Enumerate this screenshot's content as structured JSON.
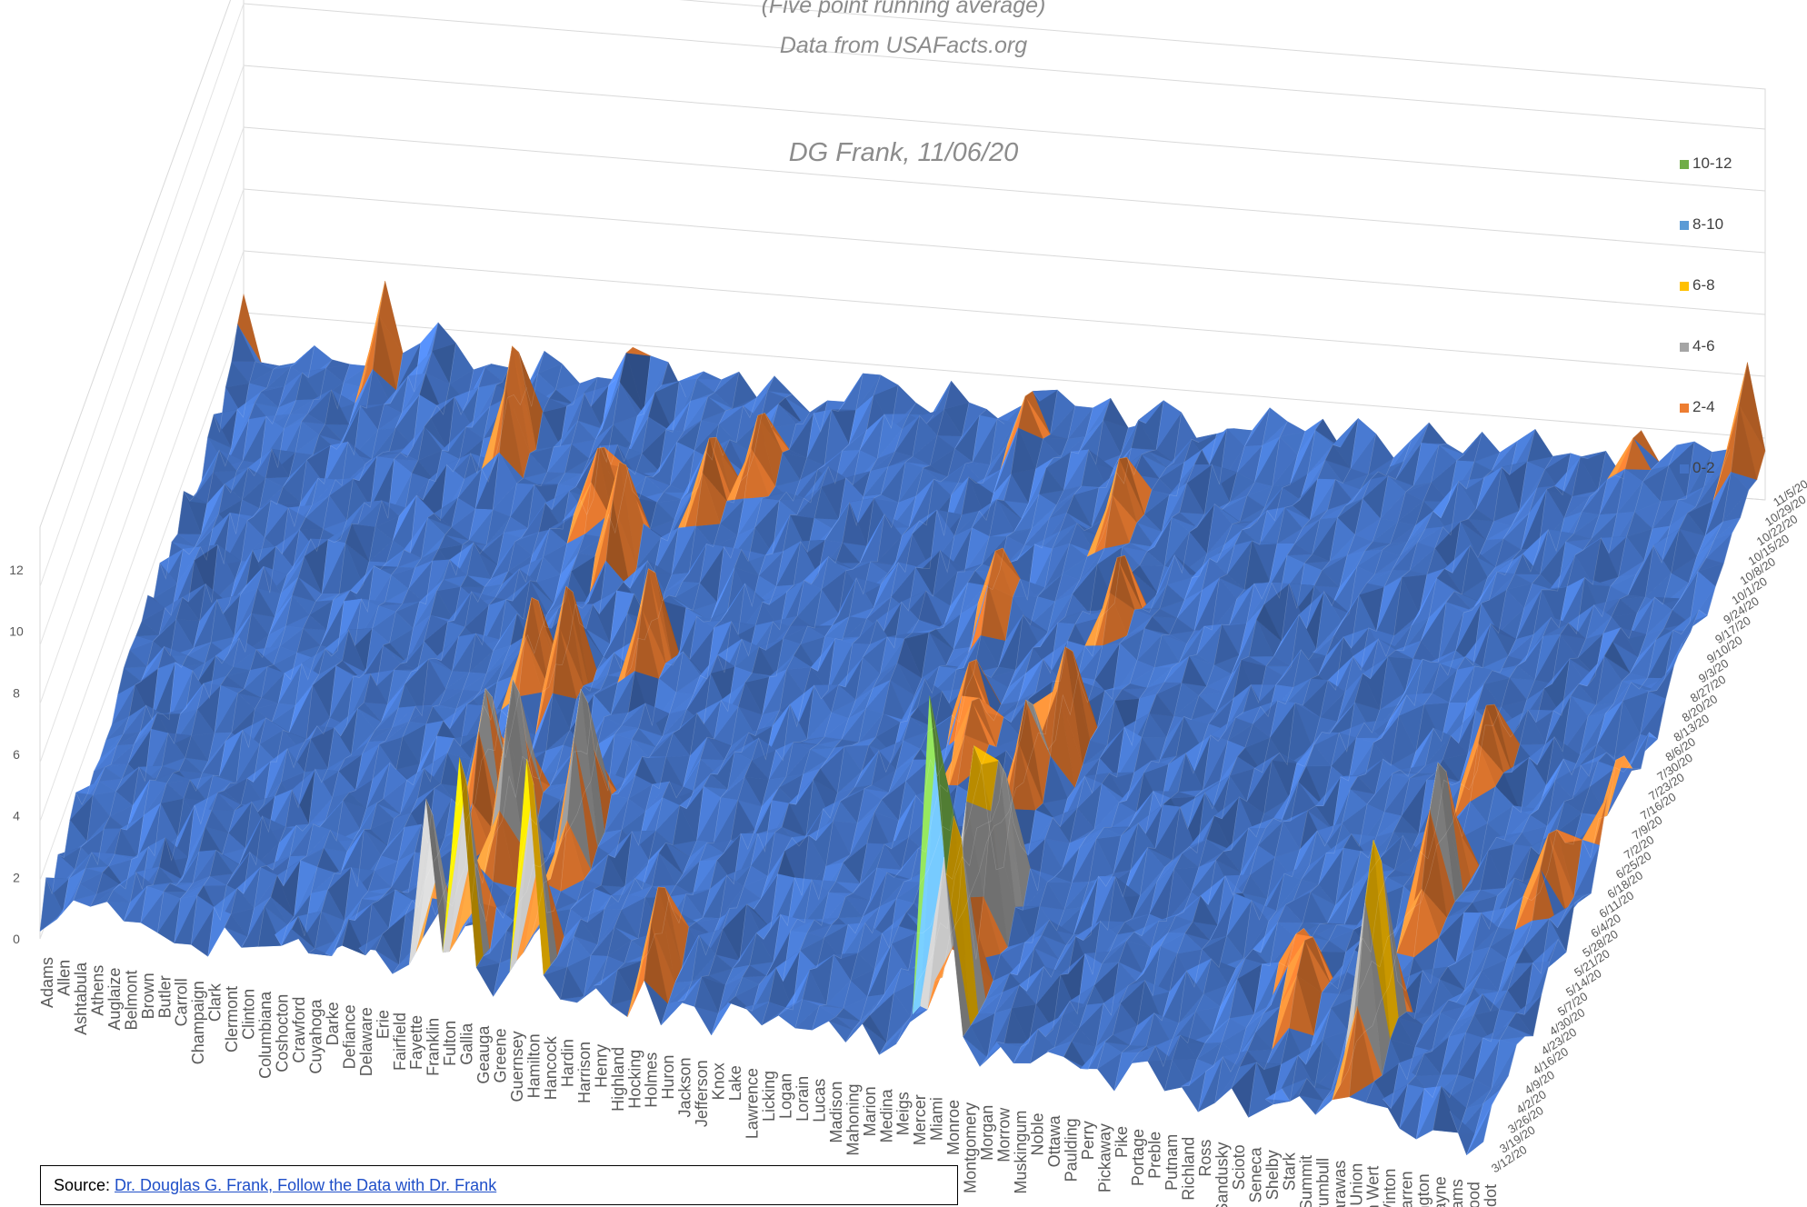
{
  "title_lines": [
    "(Five point running average)",
    "Data from USAFacts.org"
  ],
  "author_note": "DG Frank, 11/06/20",
  "source": {
    "prefix": "Source:  ",
    "link_text": "Dr. Douglas G. Frank, Follow the Data with Dr. Frank"
  },
  "chart_data": {
    "type": "surface",
    "zlim": [
      0,
      12
    ],
    "z_ticks": [
      "0",
      "2",
      "4",
      "6",
      "8",
      "10",
      "12"
    ],
    "counties": [
      "Adams",
      "Allen",
      "Ashtabula",
      "Athens",
      "Auglaize",
      "Belmont",
      "Brown",
      "Butler",
      "Carroll",
      "Champaign",
      "Clark",
      "Clermont",
      "Clinton",
      "Columbiana",
      "Coshocton",
      "Crawford",
      "Cuyahoga",
      "Darke",
      "Defiance",
      "Delaware",
      "Erie",
      "Fairfield",
      "Fayette",
      "Franklin",
      "Fulton",
      "Gallia",
      "Geauga",
      "Greene",
      "Guernsey",
      "Hamilton",
      "Hancock",
      "Hardin",
      "Harrison",
      "Henry",
      "Highland",
      "Hocking",
      "Holmes",
      "Huron",
      "Jackson",
      "Jefferson",
      "Knox",
      "Lake",
      "Lawrence",
      "Licking",
      "Logan",
      "Lorain",
      "Lucas",
      "Madison",
      "Mahoning",
      "Marion",
      "Medina",
      "Meigs",
      "Mercer",
      "Miami",
      "Monroe",
      "Montgomery",
      "Morgan",
      "Morrow",
      "Muskingum",
      "Noble",
      "Ottawa",
      "Paulding",
      "Perry",
      "Pickaway",
      "Pike",
      "Portage",
      "Preble",
      "Putnam",
      "Richland",
      "Ross",
      "Sandusky",
      "Scioto",
      "Seneca",
      "Shelby",
      "Stark",
      "Summit",
      "Trumbull",
      "Tuscarawas",
      "Union",
      "Van Wert",
      "Vinton",
      "Warren",
      "Washington",
      "Wayne",
      "Williams",
      "Wood",
      "Wyandot"
    ],
    "dates": [
      "3/12/20",
      "3/19/20",
      "3/26/20",
      "4/2/20",
      "4/9/20",
      "4/16/20",
      "4/23/20",
      "4/30/20",
      "5/7/20",
      "5/14/20",
      "5/21/20",
      "5/28/20",
      "6/4/20",
      "6/11/20",
      "6/18/20",
      "6/25/20",
      "7/2/20",
      "7/9/20",
      "7/16/20",
      "7/23/20",
      "7/30/20",
      "8/6/20",
      "8/13/20",
      "8/20/20",
      "8/27/20",
      "9/3/20",
      "9/10/20",
      "9/17/20",
      "9/24/20",
      "10/1/20",
      "10/8/20",
      "10/15/20",
      "10/22/20",
      "10/29/20",
      "11/5/20"
    ],
    "legend": [
      {
        "label": "10-12",
        "color": "#70ad47"
      },
      {
        "label": "8-10",
        "color": "#5b9bd5"
      },
      {
        "label": "6-8",
        "color": "#ffc000"
      },
      {
        "label": "4-6",
        "color": "#a5a5a5"
      },
      {
        "label": "2-4",
        "color": "#ed7d31"
      },
      {
        "label": "0-2",
        "color": "#4472c4"
      }
    ],
    "peaks": [
      {
        "county": "Adams",
        "date": "11/5/20",
        "value": 2.6
      },
      {
        "county": "Carroll",
        "date": "11/5/20",
        "value": 3.4
      },
      {
        "county": "Clermont",
        "date": "11/5/20",
        "value": 2.2
      },
      {
        "county": "Darke",
        "date": "10/1/20",
        "value": 4.5
      },
      {
        "county": "Fayette",
        "date": "10/29/20",
        "value": 2.3
      },
      {
        "county": "Franklin",
        "date": "3/12/20",
        "value": 6.5
      },
      {
        "county": "Franklin",
        "date": "5/14/20",
        "value": 5.0
      },
      {
        "county": "Franklin",
        "date": "7/2/20",
        "value": 4.0
      },
      {
        "county": "Franklin",
        "date": "9/10/20",
        "value": 3.2
      },
      {
        "county": "Gallia",
        "date": "3/12/20",
        "value": 8.0
      },
      {
        "county": "Gallia",
        "date": "5/7/20",
        "value": 6.0
      },
      {
        "county": "Gallia",
        "date": "7/2/20",
        "value": 4.5
      },
      {
        "county": "Gallia",
        "date": "8/27/20",
        "value": 4.0
      },
      {
        "county": "Hamilton",
        "date": "3/12/20",
        "value": 8.3
      },
      {
        "county": "Hamilton",
        "date": "5/7/20",
        "value": 6.0
      },
      {
        "county": "Hamilton",
        "date": "7/16/20",
        "value": 4.2
      },
      {
        "county": "Hamilton",
        "date": "9/17/20",
        "value": 3.3
      },
      {
        "county": "Hardin",
        "date": "10/1/20",
        "value": 3.0
      },
      {
        "county": "Holmes",
        "date": "3/26/20",
        "value": 3.6
      },
      {
        "county": "Lorain",
        "date": "10/22/20",
        "value": 2.6
      },
      {
        "county": "Madison",
        "date": "8/20/20",
        "value": 3.0
      },
      {
        "county": "Mahoning",
        "date": "7/9/20",
        "value": 3.0
      },
      {
        "county": "Marion",
        "date": "6/25/20",
        "value": 3.0
      },
      {
        "county": "Miami",
        "date": "3/12/20",
        "value": 12.4
      },
      {
        "county": "Miami",
        "date": "4/23/20",
        "value": 7.2
      },
      {
        "county": "Miami",
        "date": "6/11/20",
        "value": 4.5
      },
      {
        "county": "Mercer",
        "date": "9/24/20",
        "value": 3.3
      },
      {
        "county": "Monroe",
        "date": "3/19/20",
        "value": 8.0
      },
      {
        "county": "Monroe",
        "date": "4/30/20",
        "value": 6.2
      },
      {
        "county": "Monroe",
        "date": "7/2/20",
        "value": 4.5
      },
      {
        "county": "Monroe",
        "date": "8/20/20",
        "value": 3.2
      },
      {
        "county": "Seneca",
        "date": "4/23/20",
        "value": 2.6
      },
      {
        "county": "Shelby",
        "date": "4/16/20",
        "value": 3.1
      },
      {
        "county": "Union",
        "date": "4/2/20",
        "value": 8.0
      },
      {
        "county": "Union",
        "date": "5/28/20",
        "value": 5.5
      },
      {
        "county": "Union",
        "date": "7/9/20",
        "value": 3.6
      },
      {
        "county": "Van Wert",
        "date": "10/29/20",
        "value": 2.3
      },
      {
        "county": "Williams",
        "date": "6/4/20",
        "value": 3.0
      },
      {
        "county": "Wood",
        "date": "11/5/20",
        "value": 4.4
      },
      {
        "county": "Wyandot",
        "date": "7/2/20",
        "value": 3.0
      }
    ],
    "grid": true,
    "legend_position": "right"
  }
}
